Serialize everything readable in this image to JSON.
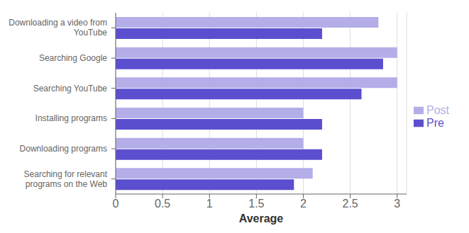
{
  "chart_data": {
    "type": "bar",
    "orientation": "horizontal",
    "categories": [
      "Downloading a video from\nYouTube",
      "Searching Google",
      "Searching YouTube",
      "Installing programs",
      "Downloading programs",
      "Searching for relevant\nprograms on the Web"
    ],
    "series": [
      {
        "name": "Post",
        "color": "#b3aee8",
        "values": [
          2.8,
          3.0,
          3.0,
          2.0,
          2.0,
          2.1
        ]
      },
      {
        "name": "Pre",
        "color": "#5b4fcf",
        "values": [
          2.2,
          2.85,
          2.62,
          2.2,
          2.2,
          1.9
        ]
      }
    ],
    "xlabel": "Average",
    "xlim": [
      0,
      3.1
    ],
    "xticks": [
      0,
      0.5,
      1,
      1.5,
      2,
      2.5,
      3
    ],
    "grid": true,
    "legend": "right"
  }
}
